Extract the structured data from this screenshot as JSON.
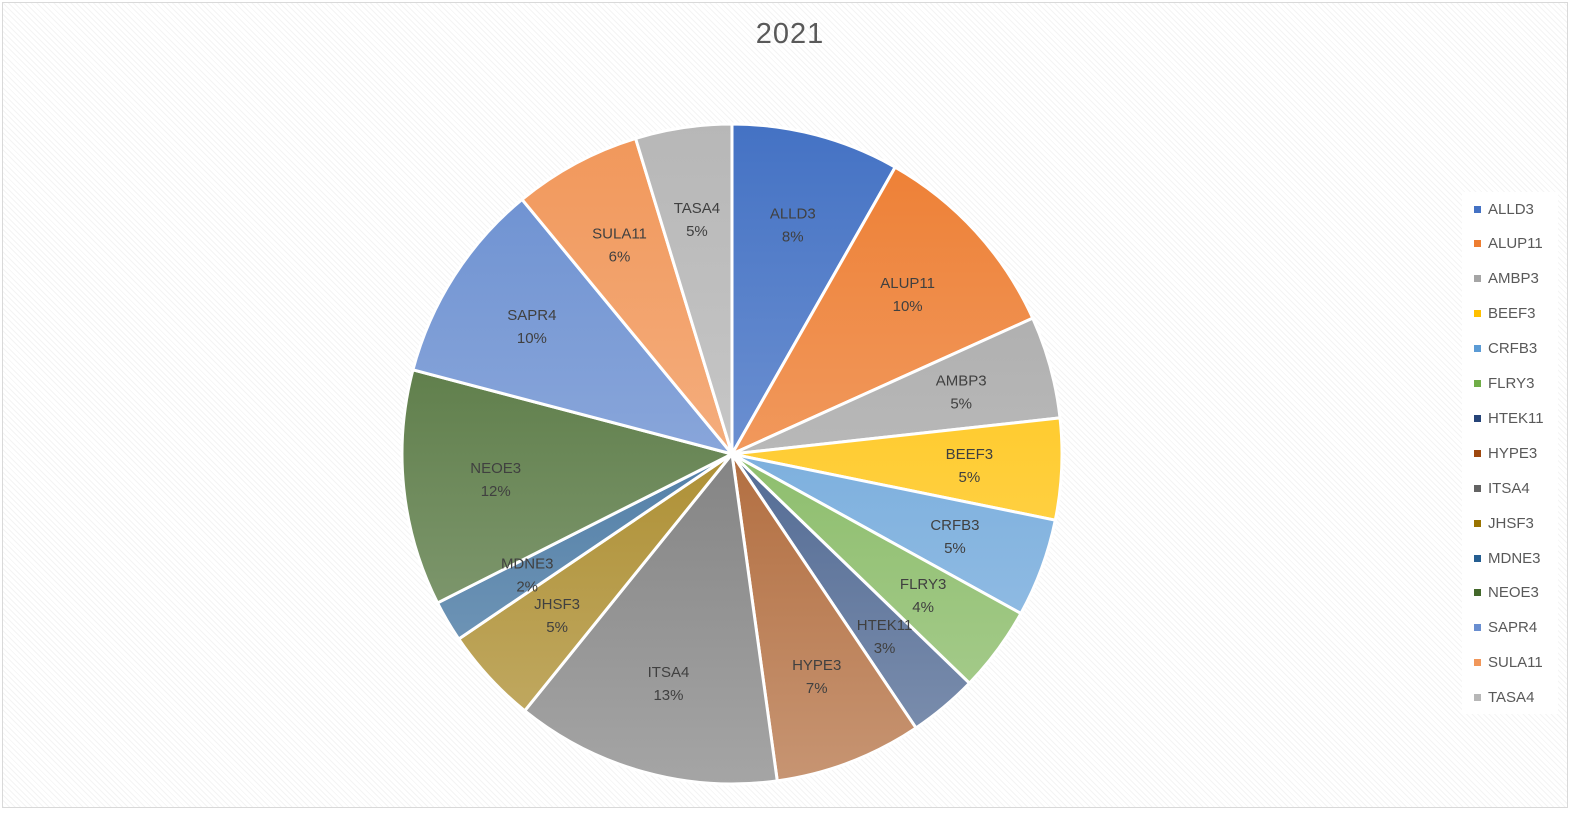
{
  "chart_data": {
    "type": "pie",
    "title": "2021",
    "legend_position": "right",
    "slices": [
      {
        "label": "ALLD3",
        "pct_label": "8%",
        "value": 8.55,
        "color": "#4472C4"
      },
      {
        "label": "ALUP11",
        "pct_label": "10%",
        "value": 10.4,
        "color": "#ED7D31"
      },
      {
        "label": "AMBP3",
        "pct_label": "5%",
        "value": 5.2,
        "color": "#A5A5A5"
      },
      {
        "label": "BEEF3",
        "pct_label": "5%",
        "value": 5.15,
        "color": "#FFC000"
      },
      {
        "label": "CRFB3",
        "pct_label": "5%",
        "value": 5.0,
        "color": "#5B9BD5"
      },
      {
        "label": "FLRY3",
        "pct_label": "4%",
        "value": 4.35,
        "color": "#70AD47"
      },
      {
        "label": "HTEK11",
        "pct_label": "3%",
        "value": 3.5,
        "color": "#264478"
      },
      {
        "label": "HYPE3",
        "pct_label": "7%",
        "value": 7.5,
        "color": "#9E480E"
      },
      {
        "label": "ITSA4",
        "pct_label": "13%",
        "value": 13.5,
        "color": "#636363"
      },
      {
        "label": "JHSF3",
        "pct_label": "5%",
        "value": 4.9,
        "color": "#997300"
      },
      {
        "label": "MDNE3",
        "pct_label": "2%",
        "value": 2.1,
        "color": "#255E91"
      },
      {
        "label": "NEOE3",
        "pct_label": "12%",
        "value": 12.0,
        "color": "#43682B"
      },
      {
        "label": "SAPR4",
        "pct_label": "10%",
        "value": 10.3,
        "color": "#698ED0"
      },
      {
        "label": "SULA11",
        "pct_label": "6%",
        "value": 6.5,
        "color": "#F1975A"
      },
      {
        "label": "TASA4",
        "pct_label": "5%",
        "value": 4.9,
        "color": "#B7B7B7"
      }
    ]
  }
}
